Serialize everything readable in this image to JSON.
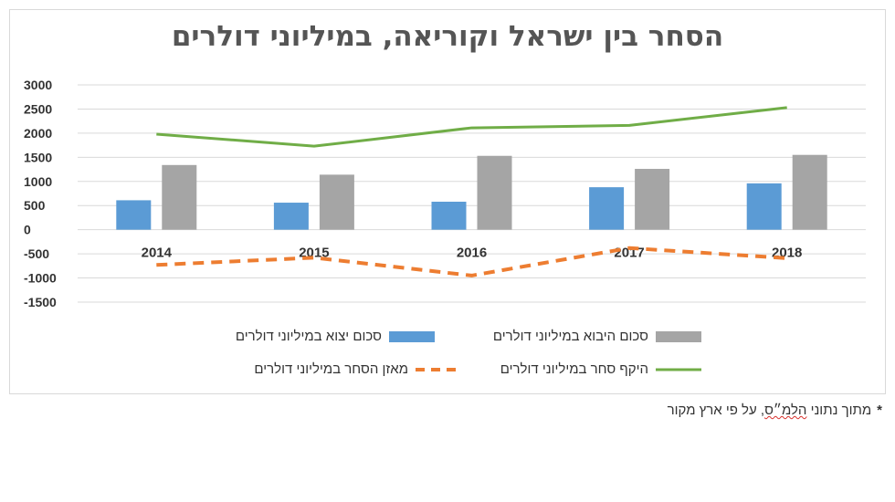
{
  "chart_data": {
    "type": "bar",
    "title": "הסחר בין ישראל וקוריאה, במיליוני דולרים",
    "categories": [
      "2014",
      "2015",
      "2016",
      "2017",
      "2018"
    ],
    "ylim": [
      -1500,
      3000
    ],
    "yticks": [
      3000,
      2500,
      2000,
      1500,
      1000,
      500,
      0,
      -500,
      -1000,
      -1500
    ],
    "grid": true,
    "legend_position": "bottom",
    "series": [
      {
        "name": "סכום יצוא במיליוני דולרים",
        "type": "bar",
        "color": "#5b9bd5",
        "values": [
          610,
          560,
          580,
          880,
          960
        ]
      },
      {
        "name": "סכום היבוא במיליוני דולרים",
        "type": "bar",
        "color": "#a5a5a5",
        "values": [
          1340,
          1140,
          1530,
          1260,
          1550
        ]
      },
      {
        "name": "מאזן הסחר במיליוני דולרים",
        "type": "line",
        "style": "dashed",
        "color": "#ed7d31",
        "values": [
          -730,
          -580,
          -950,
          -380,
          -590
        ]
      },
      {
        "name": "היקף סחר במיליוני דולרים",
        "type": "line",
        "style": "solid",
        "color": "#70ad47",
        "values": [
          1980,
          1730,
          2110,
          2160,
          2530
        ]
      }
    ]
  },
  "footnote": {
    "star": "*",
    "text_before": "מתוך נתוני ",
    "text_underlined": "הלמ״ס",
    "text_after": ", על פי ארץ מקור"
  }
}
